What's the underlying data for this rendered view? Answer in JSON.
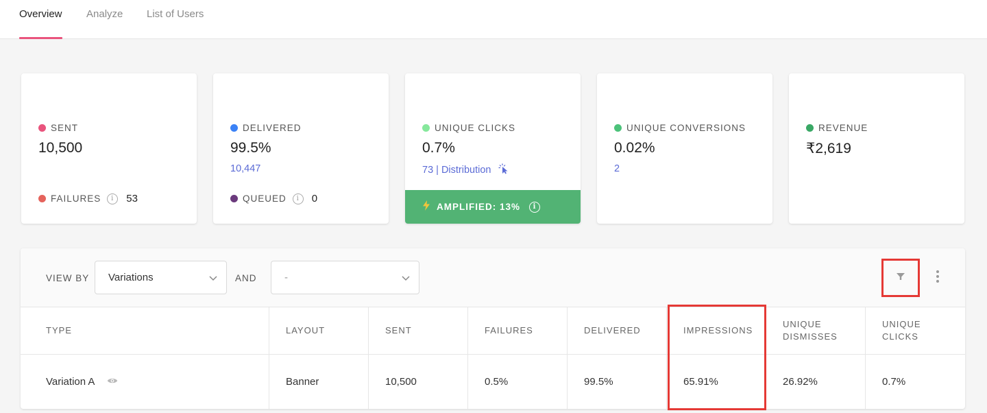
{
  "tabs": [
    {
      "label": "Overview",
      "active": true
    },
    {
      "label": "Analyze",
      "active": false
    },
    {
      "label": "List of Users",
      "active": false
    }
  ],
  "cards": {
    "sent": {
      "label": "SENT",
      "value": "10,500",
      "dot_color": "#e9547d",
      "secondary_label": "FAILURES",
      "secondary_value": "53",
      "secondary_dot_color": "#e5635c"
    },
    "delivered": {
      "label": "DELIVERED",
      "value": "99.5%",
      "sub": "10,447",
      "dot_color": "#3b82f6",
      "secondary_label": "QUEUED",
      "secondary_value": "0",
      "secondary_dot_color": "#6b3a7d"
    },
    "unique_clicks": {
      "label": "UNIQUE CLICKS",
      "value": "0.7%",
      "sub": "73 | Distribution",
      "dot_color": "#86e89c",
      "amplified": "AMPLIFIED: 13%"
    },
    "unique_conversions": {
      "label": "UNIQUE CONVERSIONS",
      "value": "0.02%",
      "sub": "2",
      "dot_color": "#4cc27a"
    },
    "revenue": {
      "label": "REVENUE",
      "value": "₹2,619",
      "dot_color": "#3aa865"
    }
  },
  "toolbar": {
    "view_by_label": "VIEW BY",
    "view_by_value": "Variations",
    "and_label": "AND",
    "and_value": "-"
  },
  "table": {
    "headers": [
      "TYPE",
      "LAYOUT",
      "SENT",
      "FAILURES",
      "DELIVERED",
      "IMPRESSIONS",
      "UNIQUE DISMISSES",
      "UNIQUE CLICKS"
    ],
    "header_lines": {
      "unique_dismisses": [
        "UNIQUE",
        "DISMISSES"
      ],
      "unique_clicks": [
        "UNIQUE",
        "CLICKS"
      ]
    },
    "rows": [
      {
        "type": "Variation A",
        "layout": "Banner",
        "sent": "10,500",
        "failures": "0.5%",
        "delivered": "99.5%",
        "impressions": "65.91%",
        "unique_dismisses": "26.92%",
        "unique_clicks": "0.7%"
      }
    ]
  },
  "icons": [
    "info-icon",
    "bolt-icon",
    "cursor-click-icon",
    "chevron-down-icon",
    "filter-icon",
    "more-vertical-icon",
    "eye-icon"
  ],
  "colors": {
    "accent": "#e9547d",
    "amplified_bg": "#52b374",
    "link": "#5b6bd6",
    "highlight": "#e53935"
  }
}
